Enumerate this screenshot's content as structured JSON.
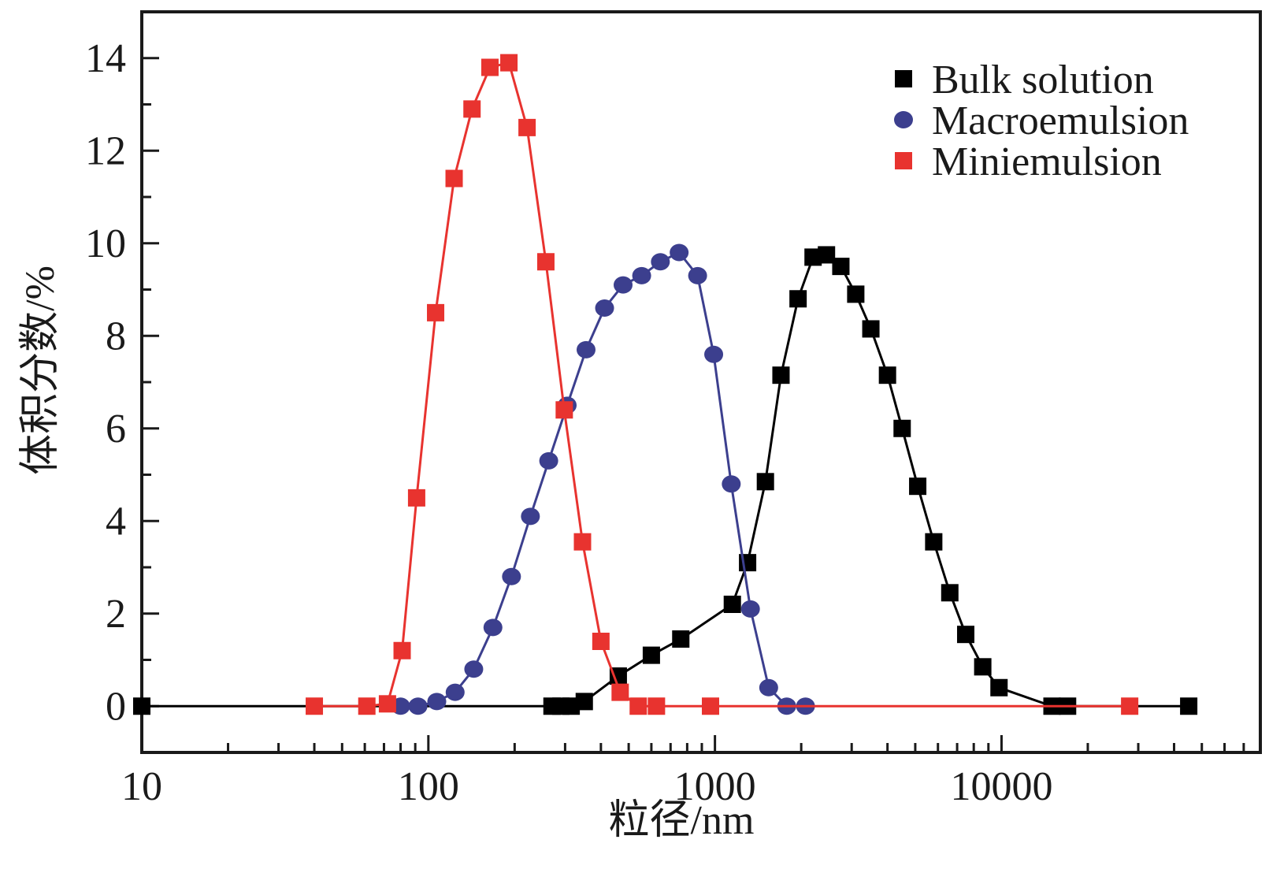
{
  "chart_data": {
    "type": "line",
    "xscale": "log",
    "xlabel": "粒径/nm",
    "ylabel": "体积分数/%",
    "xlim": [
      10,
      80000
    ],
    "ylim": [
      -1,
      15
    ],
    "xticks": [
      10,
      100,
      1000,
      10000
    ],
    "xtick_labels": [
      "10",
      "100",
      "1000",
      "10000"
    ],
    "yticks": [
      0,
      2,
      4,
      6,
      8,
      10,
      12,
      14
    ],
    "ytick_labels": [
      "0",
      "2",
      "4",
      "6",
      "8",
      "10",
      "12",
      "14"
    ],
    "grid": false,
    "legend_position": "top-right",
    "series": [
      {
        "name": "Bulk solution",
        "color": "#000000",
        "marker": "square",
        "x": [
          10,
          270,
          290,
          315,
          350,
          460,
          600,
          760,
          1150,
          1300,
          1500,
          1700,
          1950,
          2200,
          2450,
          2750,
          3100,
          3500,
          4000,
          4500,
          5100,
          5800,
          6600,
          7500,
          8600,
          9800,
          15000,
          17000,
          45000
        ],
        "y": [
          0,
          0,
          0,
          0,
          0.1,
          0.65,
          1.1,
          1.45,
          2.2,
          3.1,
          4.85,
          7.15,
          8.8,
          9.7,
          9.75,
          9.5,
          8.9,
          8.15,
          7.15,
          6.0,
          4.75,
          3.55,
          2.45,
          1.55,
          0.85,
          0.4,
          0,
          0,
          0
        ]
      },
      {
        "name": "Macroemulsion",
        "color": "#3c3f8e",
        "marker": "circle",
        "x": [
          80,
          92,
          107,
          124,
          144,
          168,
          195,
          227,
          263,
          305,
          355,
          412,
          478,
          555,
          645,
          750,
          870,
          990,
          1140,
          1330,
          1540,
          1780,
          2070
        ],
        "y": [
          0,
          0,
          0.1,
          0.3,
          0.8,
          1.7,
          2.8,
          4.1,
          5.3,
          6.5,
          7.7,
          8.6,
          9.1,
          9.3,
          9.6,
          9.8,
          9.3,
          7.6,
          4.8,
          2.1,
          0.4,
          0,
          0
        ]
      },
      {
        "name": "Miniemulsion",
        "color": "#e8332f",
        "marker": "square",
        "x": [
          40,
          61,
          72,
          81,
          91,
          106,
          123,
          142,
          164,
          191,
          221,
          257,
          298,
          345,
          400,
          467,
          540,
          625,
          965,
          28000
        ],
        "y": [
          0,
          0,
          0.05,
          1.2,
          4.5,
          8.5,
          11.4,
          12.9,
          13.8,
          13.9,
          12.5,
          9.6,
          6.4,
          3.55,
          1.4,
          0.3,
          0,
          0,
          0,
          0
        ]
      }
    ]
  }
}
